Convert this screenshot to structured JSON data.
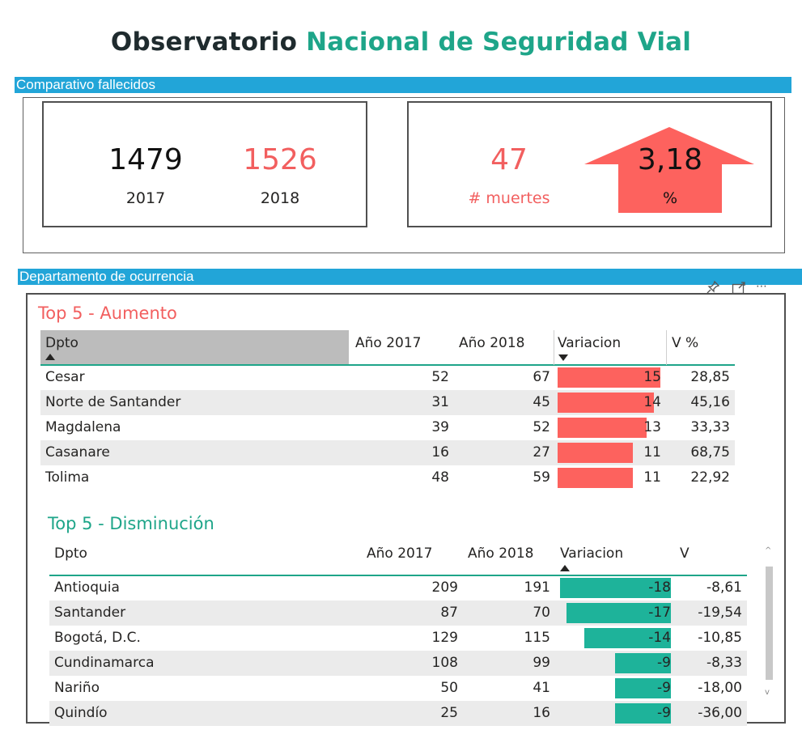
{
  "title": {
    "part1": "Observatorio",
    "part2": "Nacional de Seguridad Vial"
  },
  "colors": {
    "teal": "#1ea589",
    "red": "#f25f5f",
    "section_bar": "#22a5d8",
    "bar_red": "#fd625e",
    "bar_teal": "#1eb39a"
  },
  "section1": {
    "label": "Comparativo fallecidos"
  },
  "kpi": {
    "value_2017": "1479",
    "label_2017": "2017",
    "value_2018": "1526",
    "label_2018": "2018",
    "deaths_diff": "47",
    "deaths_label": "# muertes",
    "pct_value": "3,18",
    "pct_label": "%",
    "arrow_direction": "up"
  },
  "section2": {
    "label": "Departamento de ocurrencia"
  },
  "visual_header_icons": [
    "pin-icon",
    "focus-mode-icon",
    "more-options-icon"
  ],
  "increase": {
    "title": "Top 5 - Aumento",
    "headers": {
      "dpto": "Dpto",
      "y2017": "Año 2017",
      "y2018": "Año 2018",
      "var": "Variacion",
      "pct": "V %"
    },
    "rows": [
      {
        "dpto": "Cesar",
        "y2017": "52",
        "y2018": "67",
        "var": "15",
        "pct": "28,85",
        "var_num": 15
      },
      {
        "dpto": "Norte de Santander",
        "y2017": "31",
        "y2018": "45",
        "var": "14",
        "pct": "45,16",
        "var_num": 14
      },
      {
        "dpto": "Magdalena",
        "y2017": "39",
        "y2018": "52",
        "var": "13",
        "pct": "33,33",
        "var_num": 13
      },
      {
        "dpto": "Casanare",
        "y2017": "16",
        "y2018": "27",
        "var": "11",
        "pct": "68,75",
        "var_num": 11
      },
      {
        "dpto": "Tolima",
        "y2017": "48",
        "y2018": "59",
        "var": "11",
        "pct": "22,92",
        "var_num": 11
      }
    ]
  },
  "decrease": {
    "title": "Top 5 - Disminución",
    "headers": {
      "dpto": "Dpto",
      "y2017": "Año 2017",
      "y2018": "Año 2018",
      "var": "Variacion",
      "pct": "V"
    },
    "rows": [
      {
        "dpto": "Antioquia",
        "y2017": "209",
        "y2018": "191",
        "var": "-18",
        "pct": "-8,61",
        "var_num": -18
      },
      {
        "dpto": "Santander",
        "y2017": "87",
        "y2018": "70",
        "var": "-17",
        "pct": "-19,54",
        "var_num": -17
      },
      {
        "dpto": "Bogotá, D.C.",
        "y2017": "129",
        "y2018": "115",
        "var": "-14",
        "pct": "-10,85",
        "var_num": -14
      },
      {
        "dpto": "Cundinamarca",
        "y2017": "108",
        "y2018": "99",
        "var": "-9",
        "pct": "-8,33",
        "var_num": -9
      },
      {
        "dpto": "Nariño",
        "y2017": "50",
        "y2018": "41",
        "var": "-9",
        "pct": "-18,00",
        "var_num": -9
      },
      {
        "dpto": "Quindío",
        "y2017": "25",
        "y2018": "16",
        "var": "-9",
        "pct": "-36,00",
        "var_num": -9
      }
    ]
  }
}
